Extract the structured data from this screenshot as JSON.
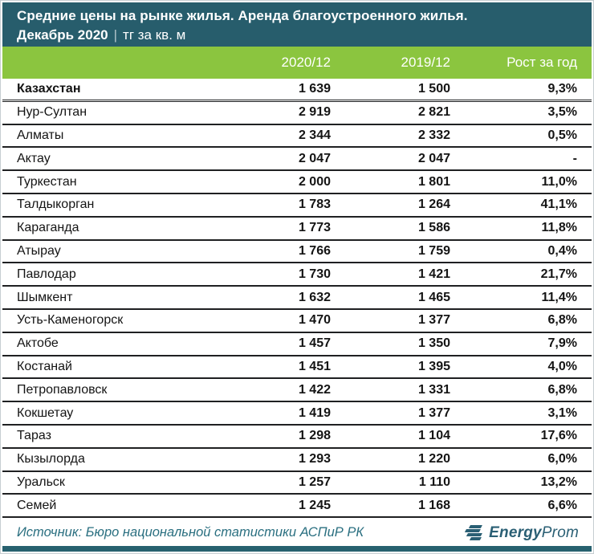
{
  "header": {
    "title": "Средние цены на рынке жилья. Аренда благоустроенного жилья.",
    "subtitle_period": "Декабрь 2020",
    "subtitle_separator": "|",
    "subtitle_unit": "тг за кв. м"
  },
  "chart_data": {
    "type": "table",
    "title": "Средние цены на рынке жилья. Аренда благоустроенного жилья. Декабрь 2020, тг за кв. м",
    "columns": [
      "2020/12",
      "2019/12",
      "Рост за год"
    ],
    "rows": [
      {
        "name": "Казахстан",
        "v2020": "1 639",
        "v2019": "1 500",
        "growth": "9,3%",
        "emphasis": true
      },
      {
        "name": "Нур-Султан",
        "v2020": "2 919",
        "v2019": "2 821",
        "growth": "3,5%",
        "emphasis": false
      },
      {
        "name": "Алматы",
        "v2020": "2 344",
        "v2019": "2 332",
        "growth": "0,5%",
        "emphasis": false
      },
      {
        "name": "Актау",
        "v2020": "2 047",
        "v2019": "2 047",
        "growth": "-",
        "emphasis": false
      },
      {
        "name": "Туркестан",
        "v2020": "2 000",
        "v2019": "1 801",
        "growth": "11,0%",
        "emphasis": false
      },
      {
        "name": "Талдыкорган",
        "v2020": "1 783",
        "v2019": "1 264",
        "growth": "41,1%",
        "emphasis": false
      },
      {
        "name": "Караганда",
        "v2020": "1 773",
        "v2019": "1 586",
        "growth": "11,8%",
        "emphasis": false
      },
      {
        "name": "Атырау",
        "v2020": "1 766",
        "v2019": "1 759",
        "growth": "0,4%",
        "emphasis": false
      },
      {
        "name": "Павлодар",
        "v2020": "1 730",
        "v2019": "1 421",
        "growth": "21,7%",
        "emphasis": false
      },
      {
        "name": "Шымкент",
        "v2020": "1 632",
        "v2019": "1 465",
        "growth": "11,4%",
        "emphasis": false
      },
      {
        "name": "Усть-Каменогорск",
        "v2020": "1 470",
        "v2019": "1 377",
        "growth": "6,8%",
        "emphasis": false
      },
      {
        "name": "Актобе",
        "v2020": "1 457",
        "v2019": "1 350",
        "growth": "7,9%",
        "emphasis": false
      },
      {
        "name": "Костанай",
        "v2020": "1 451",
        "v2019": "1 395",
        "growth": "4,0%",
        "emphasis": false
      },
      {
        "name": "Петропавловск",
        "v2020": "1 422",
        "v2019": "1 331",
        "growth": "6,8%",
        "emphasis": false
      },
      {
        "name": "Кокшетау",
        "v2020": "1 419",
        "v2019": "1 377",
        "growth": "3,1%",
        "emphasis": false
      },
      {
        "name": "Тараз",
        "v2020": "1 298",
        "v2019": "1 104",
        "growth": "17,6%",
        "emphasis": false
      },
      {
        "name": "Кызылорда",
        "v2020": "1 293",
        "v2019": "1 220",
        "growth": "6,0%",
        "emphasis": false
      },
      {
        "name": "Уральск",
        "v2020": "1 257",
        "v2019": "1 110",
        "growth": "13,2%",
        "emphasis": false
      },
      {
        "name": "Семей",
        "v2020": "1 245",
        "v2019": "1 168",
        "growth": "6,6%",
        "emphasis": false
      }
    ],
    "layout": {
      "header_rows": 1,
      "emphasized_first_row": true,
      "number_format": "space thousands, comma decimals"
    }
  },
  "footer": {
    "source": "Источник: Бюро национальной статистики АСПиР РК",
    "logo_bold": "Energy",
    "logo_light": "Prom"
  },
  "colors": {
    "header_bg": "#275d6c",
    "accent_green": "#8bc53f",
    "row_border": "#1f2022",
    "source_text": "#2a6f80",
    "logo": "#2a5f74",
    "bottom_bar": "#27616f"
  }
}
